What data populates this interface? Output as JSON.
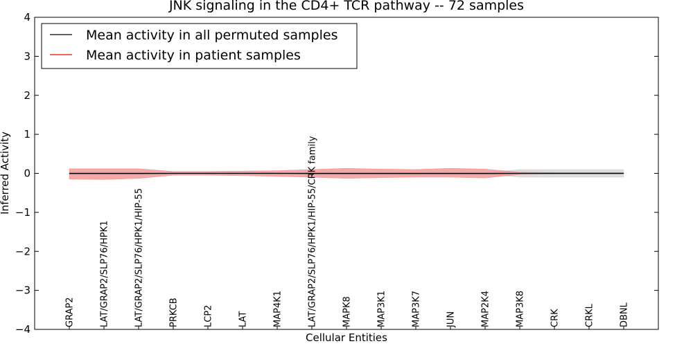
{
  "chart_data": {
    "type": "line",
    "title": "JNK signaling in the CD4+ TCR pathway -- 72 samples",
    "xlabel": "Cellular Entities",
    "ylabel": "Inferred Activity",
    "ylim": [
      -4,
      4
    ],
    "yticks": [
      "4",
      "3",
      "2",
      "1",
      "0",
      "−1",
      "−2",
      "−3",
      "−4"
    ],
    "ytick_values": [
      4,
      3,
      2,
      1,
      0,
      -1,
      -2,
      -3,
      -4
    ],
    "legend_position": "top-left",
    "colors": {
      "permuted": "#000000",
      "patient": "#ff0000",
      "patient_band": "#f28b8b",
      "permuted_band": "#d9d9d9"
    },
    "categories": [
      "GRAP2",
      "LAT/GRAP2/SLP76/HPK1",
      "LAT/GRAP2/SLP76/HPK1/HIP-55",
      "PRKCB",
      "LCP2",
      "LAT",
      "MAP4K1",
      "LAT/GRAP2/SLP76/HPK1/HIP-55/CRK family",
      "MAPK8",
      "MAP3K1",
      "MAP3K7",
      "JUN",
      "MAP2K4",
      "MAP3K8",
      "CRK",
      "CRKL",
      "DBNL"
    ],
    "series": [
      {
        "name": "Mean activity in all permuted samples",
        "values": [
          0,
          0,
          0,
          0,
          0,
          0,
          0,
          0,
          0,
          0,
          0,
          0,
          0,
          0,
          0,
          0,
          0
        ],
        "lower": [
          -0.02,
          -0.02,
          -0.02,
          -0.02,
          -0.02,
          -0.02,
          -0.02,
          -0.02,
          -0.02,
          -0.02,
          -0.02,
          -0.02,
          -0.02,
          -0.1,
          -0.1,
          -0.1,
          -0.1
        ],
        "upper": [
          0.02,
          0.02,
          0.02,
          0.02,
          0.02,
          0.02,
          0.02,
          0.02,
          0.02,
          0.02,
          0.02,
          0.02,
          0.02,
          0.1,
          0.1,
          0.1,
          0.1
        ]
      },
      {
        "name": "Mean activity in patient samples",
        "values": [
          -0.01,
          -0.01,
          -0.01,
          0,
          0,
          0,
          0,
          -0.01,
          -0.01,
          -0.01,
          -0.01,
          -0.01,
          -0.01,
          0,
          0,
          0,
          0
        ],
        "lower": [
          -0.15,
          -0.16,
          -0.13,
          -0.05,
          -0.05,
          -0.06,
          -0.08,
          -0.1,
          -0.13,
          -0.11,
          -0.1,
          -0.1,
          -0.12,
          -0.03,
          -0.02,
          -0.02,
          -0.02
        ],
        "upper": [
          0.12,
          0.12,
          0.12,
          0.05,
          0.05,
          0.06,
          0.07,
          0.1,
          0.13,
          0.11,
          0.1,
          0.13,
          0.11,
          0.03,
          0.02,
          0.02,
          0.02
        ]
      }
    ]
  }
}
